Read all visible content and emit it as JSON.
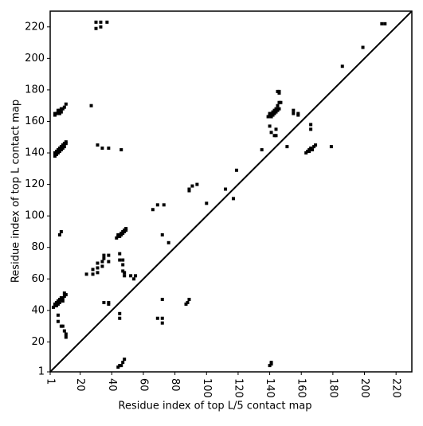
{
  "chart_data": {
    "type": "scatter",
    "xlabel": "Residue index of top L/5 contact map",
    "ylabel": "Residue index of top L contact map",
    "xlim": [
      1,
      230
    ],
    "ylim": [
      1,
      230
    ],
    "xticks": [
      1,
      20,
      40,
      60,
      80,
      100,
      120,
      140,
      160,
      180,
      200,
      220
    ],
    "yticks": [
      1,
      20,
      40,
      60,
      80,
      100,
      120,
      140,
      160,
      180,
      200,
      220
    ],
    "color": "#000000",
    "x": [
      4,
      4,
      5,
      5,
      6,
      6,
      7,
      7,
      8,
      8,
      9,
      9,
      10,
      10,
      11,
      11,
      4,
      4,
      5,
      6,
      6,
      7,
      7,
      8,
      8,
      9,
      10,
      11,
      27,
      30,
      30,
      33,
      33,
      37,
      31,
      34,
      38,
      46,
      7,
      8,
      43,
      44,
      44,
      45,
      45,
      46,
      46,
      47,
      47,
      48,
      48,
      49,
      49,
      66,
      69,
      73,
      72,
      76,
      3,
      4,
      4,
      5,
      5,
      6,
      6,
      7,
      7,
      8,
      8,
      9,
      9,
      10,
      10,
      11,
      6,
      6,
      8,
      9,
      10,
      11,
      11,
      24,
      28,
      28,
      31,
      31,
      31,
      34,
      34,
      35,
      38,
      38,
      35,
      45,
      45,
      47,
      47,
      47,
      48,
      48,
      52,
      54,
      55,
      35,
      38,
      38,
      45,
      45,
      44,
      45,
      46,
      47,
      48,
      69,
      72,
      72,
      72,
      87,
      88,
      89,
      139,
      140,
      140,
      141,
      141,
      142,
      142,
      143,
      143,
      144,
      144,
      145,
      145,
      146,
      146,
      147,
      145,
      146,
      146,
      140,
      141,
      143,
      144,
      144,
      151,
      155,
      155,
      158,
      158,
      166,
      166,
      163,
      164,
      165,
      165,
      166,
      167,
      168,
      169,
      179,
      135,
      119,
      112,
      117,
      100,
      89,
      89,
      91,
      94,
      186,
      199,
      211,
      213,
      140,
      141,
      141
    ],
    "values": [
      138,
      140,
      139,
      141,
      140,
      142,
      141,
      143,
      142,
      144,
      143,
      145,
      144,
      146,
      146,
      147,
      164,
      165,
      165,
      166,
      167,
      165,
      167,
      166,
      168,
      168,
      169,
      171,
      170,
      219,
      223,
      220,
      223,
      223,
      145,
      143,
      143,
      142,
      88,
      90,
      86,
      87,
      88,
      87,
      88,
      88,
      89,
      89,
      90,
      90,
      91,
      91,
      92,
      104,
      107,
      107,
      88,
      83,
      42,
      43,
      44,
      43,
      45,
      44,
      46,
      45,
      47,
      47,
      48,
      46,
      48,
      49,
      51,
      50,
      37,
      33,
      30,
      30,
      27,
      23,
      25,
      63,
      63,
      66,
      64,
      67,
      70,
      68,
      71,
      73,
      71,
      75,
      75,
      72,
      76,
      65,
      69,
      72,
      62,
      64,
      62,
      60,
      62,
      45,
      44,
      45,
      35,
      38,
      4,
      5,
      5,
      7,
      9,
      35,
      32,
      35,
      47,
      44,
      45,
      47,
      163,
      164,
      165,
      163,
      165,
      164,
      166,
      165,
      167,
      166,
      168,
      167,
      170,
      168,
      172,
      172,
      179,
      178,
      179,
      157,
      153,
      151,
      155,
      151,
      144,
      165,
      167,
      165,
      164,
      155,
      158,
      140,
      141,
      142,
      141,
      143,
      142,
      144,
      145,
      144,
      142,
      129,
      117,
      111,
      108,
      116,
      117,
      119,
      120,
      195,
      207,
      222,
      222,
      5,
      6,
      7
    ]
  }
}
